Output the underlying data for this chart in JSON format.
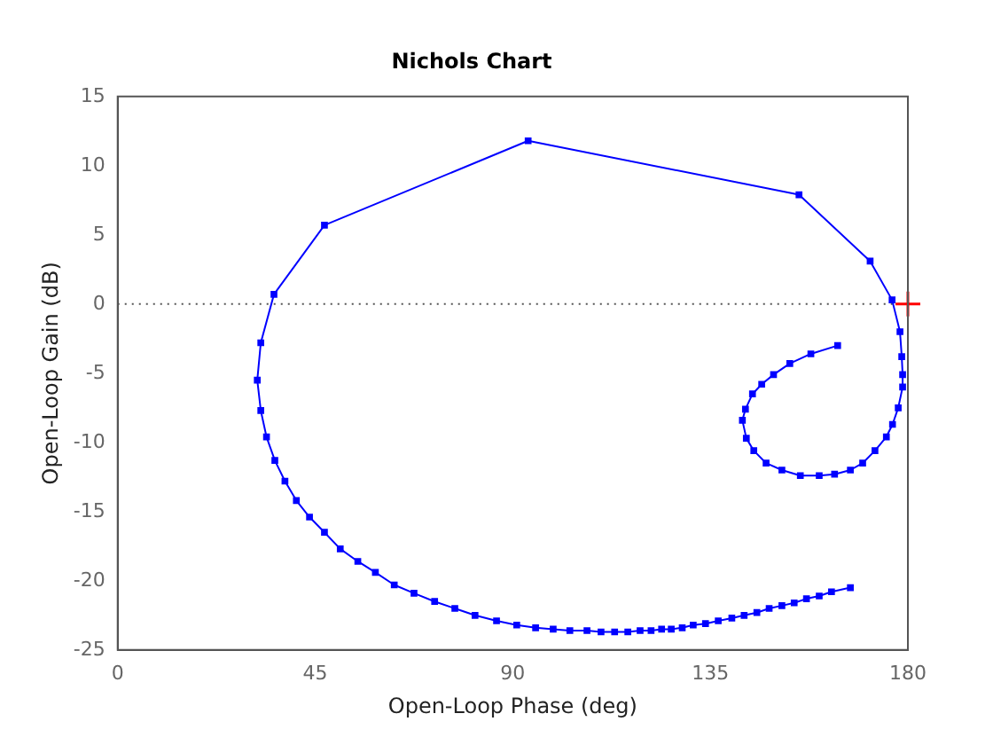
{
  "chart_data": {
    "type": "line",
    "title": "Nichols Chart",
    "xlabel": "Open-Loop Phase (deg)",
    "ylabel": "Open-Loop Gain (dB)",
    "xlim": [
      0,
      180
    ],
    "xticks": [
      0,
      45,
      90,
      135,
      180
    ],
    "ylim": [
      -25,
      15
    ],
    "yticks": [
      -25,
      -20,
      -15,
      -10,
      -5,
      0,
      5,
      10,
      15
    ],
    "grid": false,
    "legend": false,
    "ref_lines": [
      {
        "axis": "y",
        "value": 0,
        "color": "#555555",
        "line_style": "dotted"
      }
    ],
    "series": [
      {
        "type": "line",
        "color": "#0000ff",
        "marker": "square",
        "line_style": "solid",
        "x": [
          166.9,
          162.6,
          159.8,
          156.9,
          154.1,
          151.3,
          148.4,
          145.6,
          142.7,
          139.9,
          136.8,
          133.9,
          131.1,
          128.6,
          126.1,
          123.9,
          121.5,
          119.0,
          116.2,
          113.2,
          110.1,
          106.9,
          103.0,
          99.2,
          95.2,
          90.9,
          86.3,
          81.4,
          76.8,
          72.2,
          67.5,
          63.0,
          58.7,
          54.7,
          50.7,
          47.1,
          43.7,
          40.7,
          38.1,
          35.8,
          33.9,
          32.6,
          31.8,
          32.6,
          35.6,
          47.1,
          93.5,
          155.2,
          171.4,
          176.4,
          178.2,
          178.6,
          178.8,
          178.8,
          177.8,
          176.5,
          175.1,
          172.5,
          169.7,
          166.9,
          163.3,
          159.8,
          155.5,
          151.3,
          147.7,
          144.9,
          143.2,
          142.3,
          143.0,
          144.6,
          146.7,
          149.4,
          153.1,
          157.9,
          164.0
        ],
        "values": [
          -20.5,
          -20.8,
          -21.1,
          -21.3,
          -21.6,
          -21.8,
          -22.0,
          -22.3,
          -22.5,
          -22.7,
          -22.9,
          -23.1,
          -23.2,
          -23.4,
          -23.5,
          -23.5,
          -23.6,
          -23.6,
          -23.7,
          -23.7,
          -23.7,
          -23.6,
          -23.6,
          -23.5,
          -23.4,
          -23.2,
          -22.9,
          -22.5,
          -22.0,
          -21.5,
          -20.9,
          -20.3,
          -19.4,
          -18.6,
          -17.7,
          -16.5,
          -15.4,
          -14.2,
          -12.8,
          -11.3,
          -9.6,
          -7.7,
          -5.5,
          -2.8,
          0.7,
          5.7,
          11.8,
          7.9,
          3.1,
          0.3,
          -2.0,
          -3.8,
          -5.1,
          -6.0,
          -7.5,
          -8.7,
          -9.6,
          -10.6,
          -11.5,
          -12.0,
          -12.3,
          -12.4,
          -12.4,
          -12.0,
          -11.5,
          -10.6,
          -9.7,
          -8.4,
          -7.6,
          -6.5,
          -5.8,
          -5.1,
          -4.3,
          -3.6,
          -3.0
        ]
      },
      {
        "type": "scatter",
        "color": "#ff0000",
        "marker": "cross",
        "x": [
          180
        ],
        "values": [
          0
        ]
      }
    ]
  }
}
